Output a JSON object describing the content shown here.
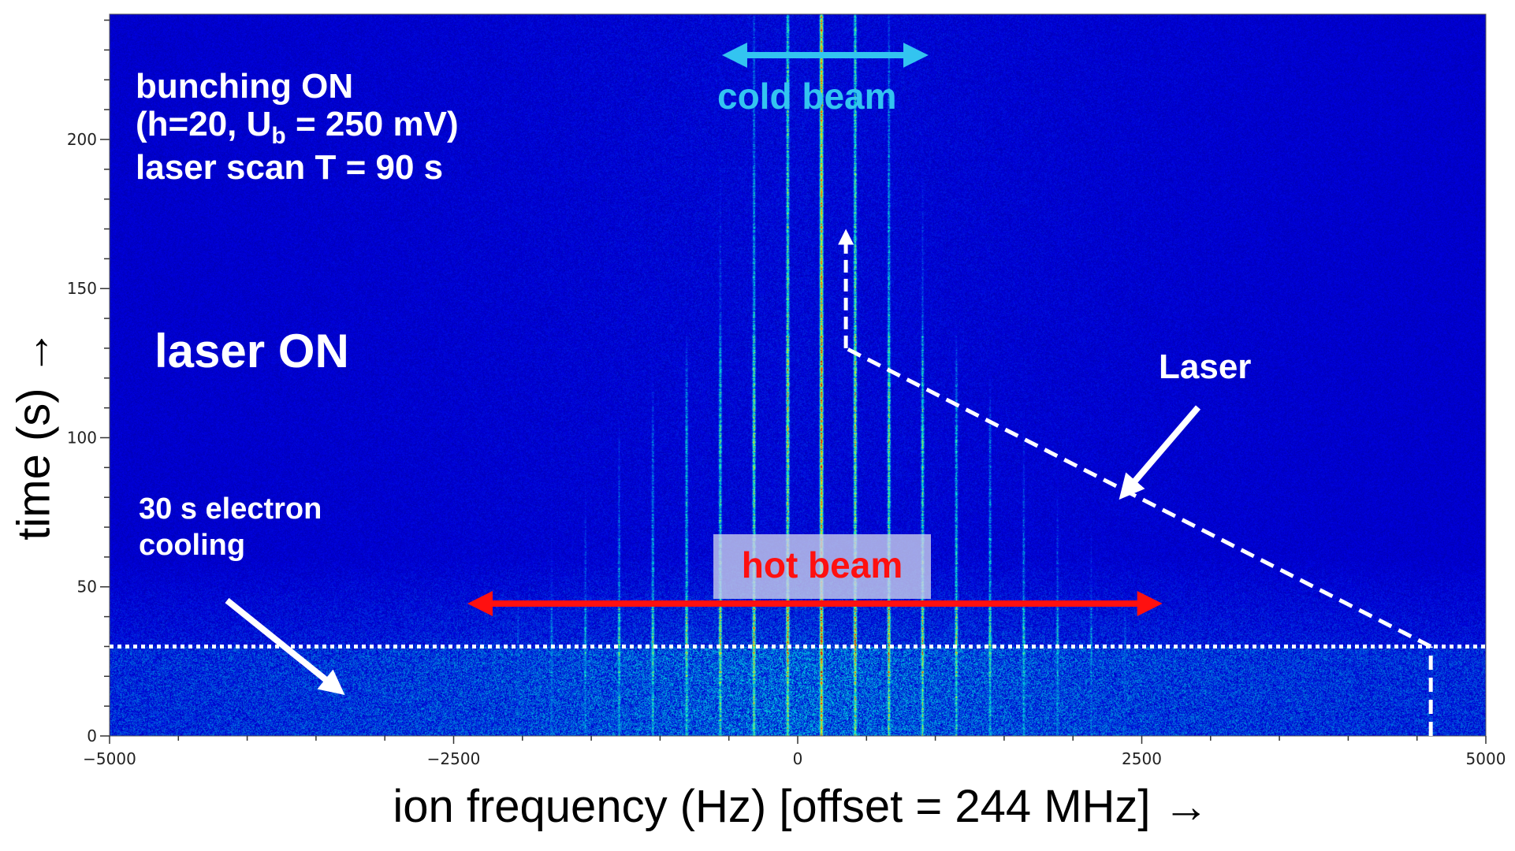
{
  "chart_data": {
    "type": "heatmap",
    "title": "",
    "xlabel": "ion frequency (Hz) [offset = 244 MHz] →",
    "ylabel": "time (s) →",
    "xlim": [
      -5000,
      5000
    ],
    "ylim": [
      0,
      242
    ],
    "xticks": [
      -5000,
      -2500,
      0,
      2500,
      5000
    ],
    "xtick_labels": [
      "−5000",
      "−2500",
      "0",
      "2500",
      "5000"
    ],
    "yticks": [
      0,
      50,
      100,
      150,
      200
    ],
    "ytick_labels": [
      "0",
      "50",
      "100",
      "150",
      "200"
    ],
    "colormap": "jet",
    "line_spacing_hz": 245,
    "center_line_hz": 170,
    "cooling_end_time_s": 30,
    "laser_scan": {
      "start": {
        "f": 4600,
        "t": 30
      },
      "end": {
        "f": 350,
        "t": 130
      },
      "arrow_to_t": 170
    },
    "hot_beam_range_hz": [
      -2400,
      2650
    ],
    "cold_beam_range_hz": [
      -550,
      950
    ]
  },
  "annotations": {
    "bunching_line1": "bunching ON",
    "bunching_line2_pre": "(h=20, U",
    "bunching_line2_sub": "b",
    "bunching_line2_post": " = 250 mV)",
    "bunching_line3": "laser scan T = 90 s",
    "laser_on": "laser ON",
    "cooling_line1": "30 s electron",
    "cooling_line2": "cooling",
    "cold_beam": "cold beam",
    "hot_beam": "hot beam",
    "laser": "Laser"
  },
  "colors": {
    "cold": "#33c4f0",
    "hot": "#ff1010",
    "annotation": "#ffffff"
  }
}
